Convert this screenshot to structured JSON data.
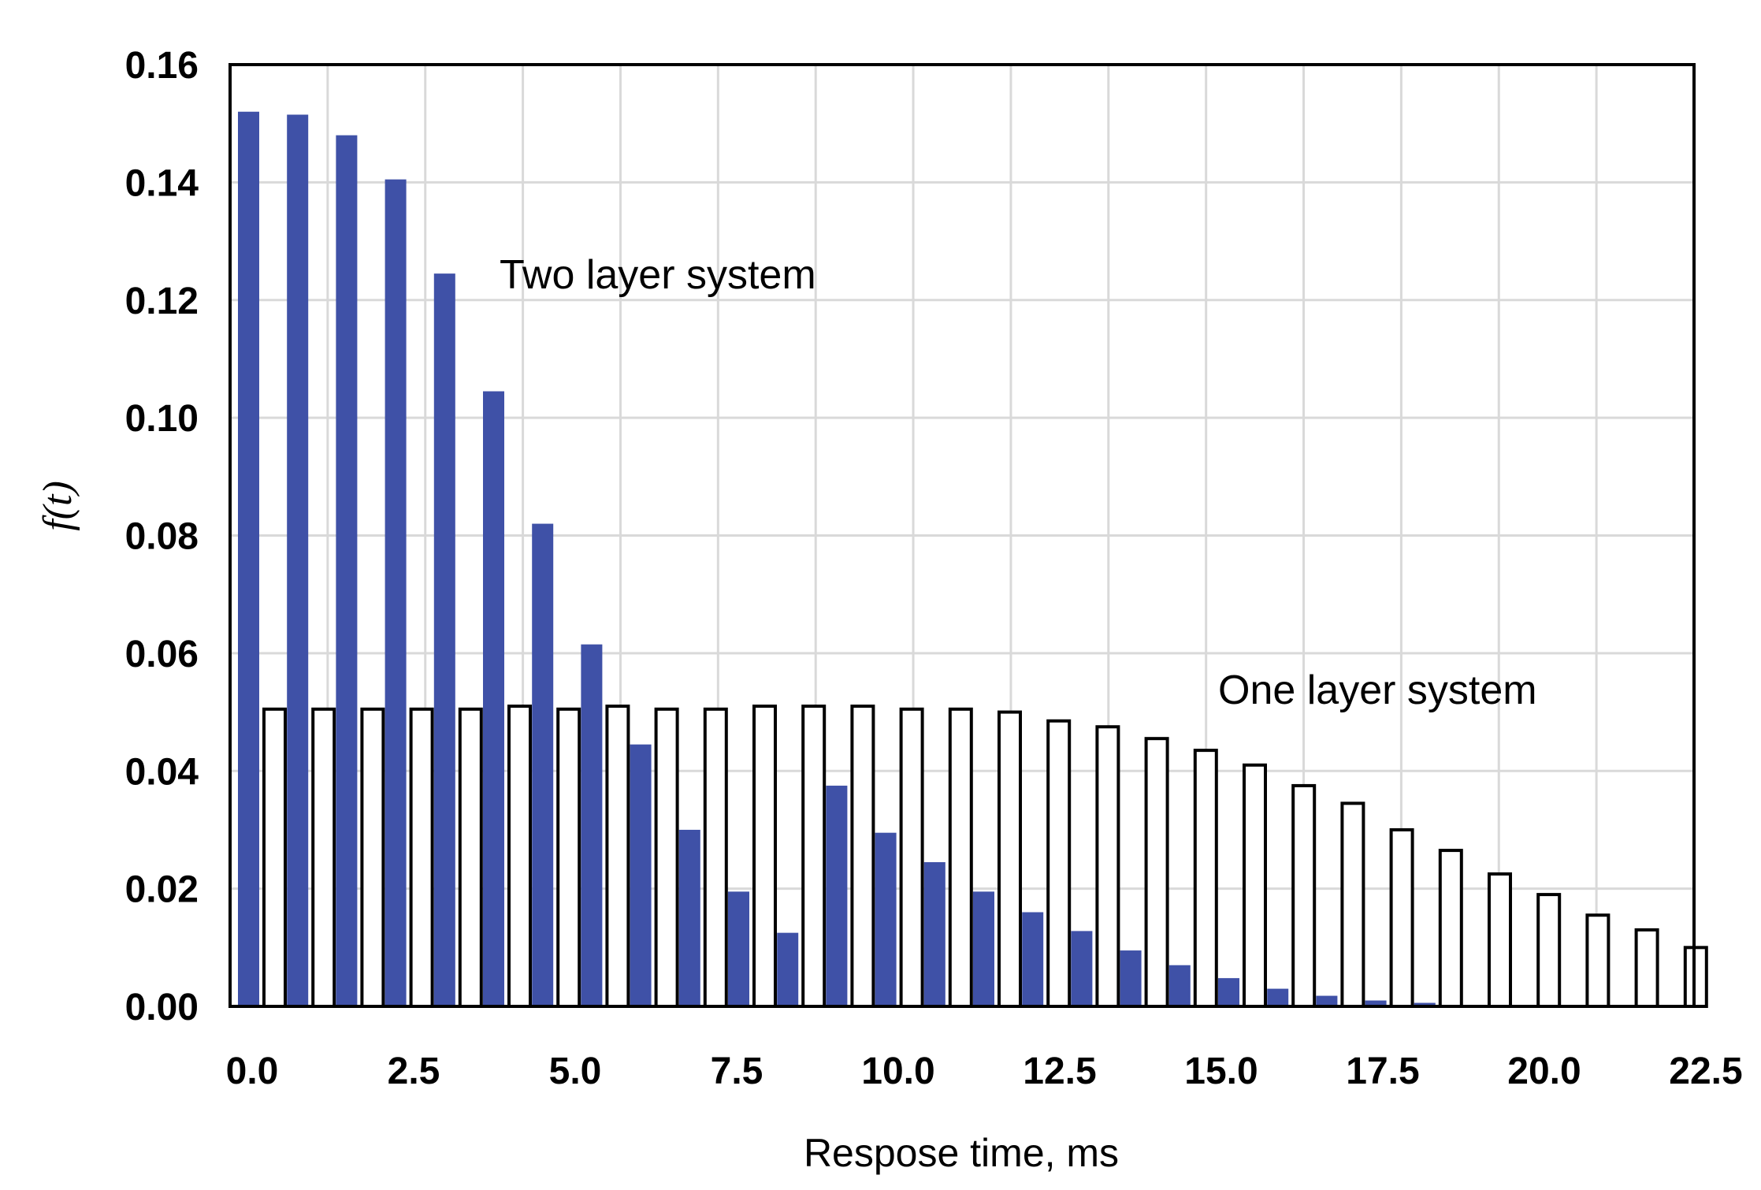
{
  "chart_data": {
    "type": "bar",
    "title": "",
    "xlabel": "Respose time, ms",
    "ylabel": "f(t)",
    "xlim": [
      0.0,
      22.5
    ],
    "ylim": [
      0.0,
      0.16
    ],
    "xticks": [
      "0.0",
      "2.5",
      "5.0",
      "7.5",
      "10.0",
      "12.5",
      "15.0",
      "17.5",
      "20.0",
      "22.5"
    ],
    "yticks": [
      "0.00",
      "0.02",
      "0.04",
      "0.06",
      "0.08",
      "0.10",
      "0.12",
      "0.14",
      "0.16"
    ],
    "grid": true,
    "annotations": [
      {
        "text": "Two layer system",
        "series": "Two layer system"
      },
      {
        "text": "One layer system",
        "series": "One layer system"
      }
    ],
    "categories": [
      0.0,
      0.75,
      1.5,
      2.25,
      3.0,
      3.75,
      4.5,
      5.25,
      6.0,
      6.75,
      7.5,
      8.25,
      9.0,
      9.75,
      10.5,
      11.25,
      12.0,
      12.75,
      13.5,
      14.25,
      15.0,
      15.75,
      16.5,
      17.25,
      18.0,
      18.75,
      19.5,
      20.25,
      21.0,
      21.75
    ],
    "series": [
      {
        "name": "Two layer system",
        "color": "#3f51a7",
        "style": "filled",
        "values": [
          0.152,
          0.1515,
          0.148,
          0.1405,
          0.1245,
          0.1045,
          0.082,
          0.0615,
          0.0445,
          0.03,
          0.0195,
          0.0125,
          0.0375,
          0.0295,
          0.0245,
          0.0195,
          0.016,
          0.0128,
          0.0095,
          0.007,
          0.0048,
          0.003,
          0.0018,
          0.001,
          0.0006,
          0.0002,
          0,
          0,
          0,
          0
        ]
      },
      {
        "name": "One layer system",
        "color": "#000000",
        "style": "outline",
        "values": [
          0.0505,
          0.0505,
          0.0505,
          0.0505,
          0.0505,
          0.051,
          0.0505,
          0.051,
          0.0505,
          0.0505,
          0.051,
          0.051,
          0.051,
          0.0505,
          0.0505,
          0.05,
          0.0485,
          0.0475,
          0.0455,
          0.0435,
          0.041,
          0.0375,
          0.0345,
          0.03,
          0.0265,
          0.0225,
          0.019,
          0.0155,
          0.013,
          0.01
        ]
      }
    ]
  }
}
